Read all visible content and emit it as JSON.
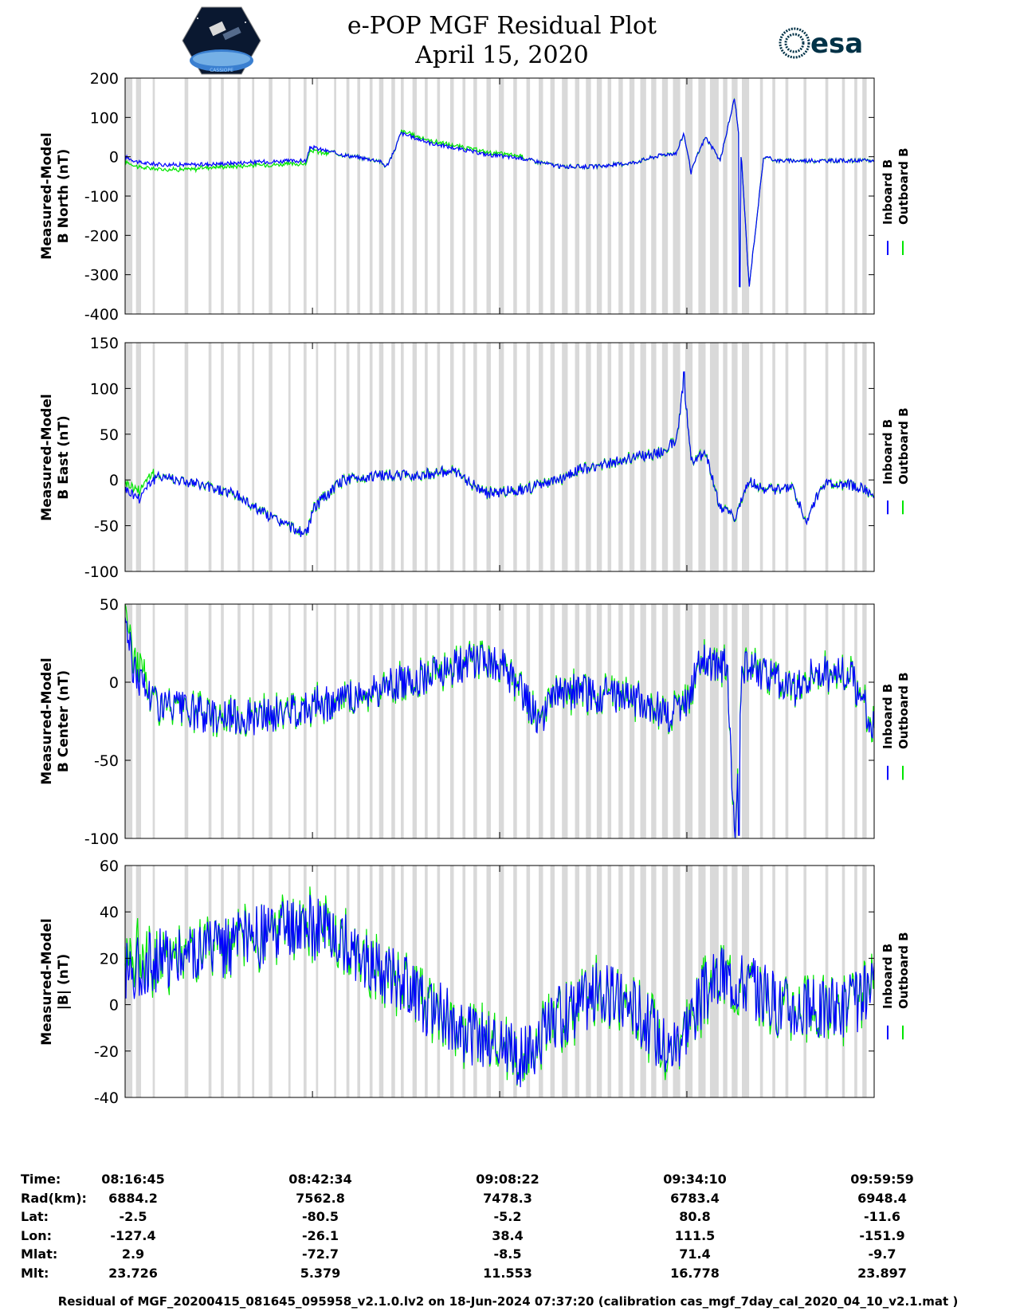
{
  "title_line1": "e-POP MGF Residual Plot",
  "title_line2": "April 15, 2020",
  "logo_cassiope_text": "CASSIOPE",
  "logo_esa_text": "esa",
  "footer": "Residual of MGF_20200415_081645_095958_v2.1.0.lv2 on 18-Jun-2024 07:37:20 (calibration cas_mgf_7day_cal_2020_04_10_v2.1.mat )",
  "colors": {
    "inboard": "#0000ff",
    "outboard": "#00e600",
    "gap": "#d9d9d9",
    "axis": "#000000"
  },
  "legend": {
    "inboard": "Inboard B",
    "outboard": "Outboard B"
  },
  "info_table": {
    "labels": [
      "Time:",
      "Rad(km):",
      "Lat:",
      "Lon:",
      "Mlat:",
      "Mlt:"
    ],
    "columns": [
      [
        "08:16:45",
        "6884.2",
        "-2.5",
        "-127.4",
        "2.9",
        "23.726"
      ],
      [
        "08:42:34",
        "7562.8",
        "-80.5",
        "-26.1",
        "-72.7",
        "5.379"
      ],
      [
        "09:08:22",
        "7478.3",
        "-5.2",
        "38.4",
        "-8.5",
        "11.553"
      ],
      [
        "09:34:10",
        "6783.4",
        "80.8",
        "111.5",
        "71.4",
        "16.778"
      ],
      [
        "09:59:59",
        "6948.4",
        "-11.6",
        "-151.9",
        "-9.7",
        "23.897"
      ]
    ]
  },
  "chart_data": [
    {
      "type": "line",
      "ylabel_line1": "Measured-Model",
      "ylabel_line2": "B North (nT)",
      "ylim": [
        -400,
        200
      ],
      "yticks": [
        200,
        100,
        0,
        -100,
        -200,
        -300,
        -400
      ],
      "xlim_min": [
        0,
        103.23
      ],
      "xticks_min": [
        0,
        25.82,
        51.62,
        77.42,
        103.23
      ],
      "noise": 5,
      "envelope_min": [
        0,
        2,
        5,
        10,
        20,
        25,
        25.5,
        30,
        35,
        36,
        37,
        38,
        42,
        50,
        55,
        60,
        65,
        70,
        74,
        76,
        77,
        78,
        79,
        80,
        82,
        84,
        85,
        86,
        88,
        90,
        95,
        100,
        103.23
      ],
      "envelope_val": [
        0,
        -15,
        -20,
        -20,
        -12,
        -10,
        25,
        5,
        -10,
        -25,
        10,
        60,
        35,
        5,
        -5,
        -25,
        -25,
        -15,
        5,
        10,
        60,
        -40,
        10,
        50,
        -10,
        150,
        -20,
        -330,
        0,
        -10,
        -10,
        -10,
        -10
      ],
      "outboard_offsets": [
        [
          0,
          12,
          -12
        ],
        [
          10,
          28,
          -8
        ],
        [
          38,
          55,
          6
        ]
      ],
      "spike_min": 84.7,
      "spike_val": -330
    },
    {
      "type": "line",
      "ylabel_line1": "Measured-Model",
      "ylabel_line2": "B East (nT)",
      "ylim": [
        -100,
        150
      ],
      "yticks": [
        150,
        100,
        50,
        0,
        -50,
        -100
      ],
      "xlim_min": [
        0,
        103.23
      ],
      "xticks_min": [
        0,
        25.82,
        51.62,
        77.42,
        103.23
      ],
      "noise": 6,
      "envelope_min": [
        0,
        2,
        3,
        5,
        10,
        15,
        20,
        25,
        26,
        28,
        30,
        35,
        40,
        45,
        50,
        55,
        60,
        62,
        65,
        70,
        74,
        76,
        77,
        78,
        80,
        82,
        84,
        86,
        88,
        90,
        92,
        94,
        96,
        100,
        103.23
      ],
      "envelope_val": [
        -10,
        -20,
        -5,
        5,
        -5,
        -15,
        -40,
        -60,
        -30,
        -15,
        0,
        5,
        5,
        10,
        -15,
        -10,
        0,
        10,
        15,
        25,
        30,
        45,
        110,
        20,
        30,
        -30,
        -40,
        0,
        -10,
        -10,
        -10,
        -45,
        -5,
        -5,
        -15
      ],
      "outboard_offsets": [
        [
          0,
          4,
          8
        ]
      ],
      "spike_min": 77.0,
      "spike_val": 118
    },
    {
      "type": "line",
      "ylabel_line1": "Measured-Model",
      "ylabel_line2": "B Center (nT)",
      "ylim": [
        -100,
        50
      ],
      "yticks": [
        50,
        0,
        -50,
        -100
      ],
      "xlim_min": [
        0,
        103.23
      ],
      "xticks_min": [
        0,
        25.82,
        51.62,
        77.42,
        103.23
      ],
      "noise": 12,
      "envelope_min": [
        0,
        1,
        3,
        5,
        10,
        15,
        20,
        25,
        30,
        35,
        40,
        45,
        50,
        52,
        55,
        57,
        60,
        65,
        70,
        75,
        77,
        78,
        79,
        83,
        84,
        85,
        88,
        92,
        95,
        100,
        103.23
      ],
      "envelope_val": [
        45,
        10,
        -5,
        -15,
        -20,
        -22,
        -22,
        -15,
        -12,
        -5,
        2,
        10,
        15,
        10,
        -10,
        -25,
        -5,
        -8,
        -10,
        -20,
        -15,
        -5,
        15,
        10,
        -100,
        10,
        5,
        -5,
        5,
        5,
        -30
      ],
      "outboard_offsets": [
        [
          0,
          3,
          8
        ]
      ],
      "spike_min": 84.6,
      "spike_val": -98
    },
    {
      "type": "line",
      "ylabel_line1": "Measured-Model",
      "ylabel_line2": "|B| (nT)",
      "ylim": [
        -40,
        60
      ],
      "yticks": [
        60,
        40,
        20,
        0,
        -20,
        -40
      ],
      "xlim_min": [
        0,
        103.23
      ],
      "xticks_min": [
        0,
        25.82,
        51.62,
        77.42,
        103.23
      ],
      "noise": 14,
      "envelope_min": [
        0,
        3,
        5,
        10,
        15,
        20,
        25,
        30,
        35,
        40,
        45,
        50,
        55,
        60,
        65,
        70,
        72,
        75,
        78,
        80,
        82,
        85,
        88,
        90,
        95,
        100,
        103.23
      ],
      "envelope_val": [
        15,
        18,
        20,
        24,
        26,
        30,
        34,
        28,
        16,
        4,
        -8,
        -18,
        -22,
        -5,
        5,
        0,
        -8,
        -20,
        -5,
        5,
        12,
        10,
        5,
        0,
        -3,
        0,
        5
      ],
      "outboard_offsets": [
        [
          0,
          3,
          6
        ]
      ],
      "spike_min": null,
      "spike_val": null
    }
  ],
  "gap_bands_min": [
    [
      0.0,
      1.0
    ],
    [
      1.5,
      2.2
    ],
    [
      3.8,
      4.1
    ],
    [
      8.2,
      8.7
    ],
    [
      11.5,
      11.9
    ],
    [
      13.2,
      13.6
    ],
    [
      15.5,
      15.9
    ],
    [
      17.5,
      17.8
    ],
    [
      19.8,
      20.3
    ],
    [
      22.5,
      22.8
    ],
    [
      24.6,
      25.0
    ],
    [
      26.3,
      26.6
    ],
    [
      28.8,
      29.1
    ],
    [
      30.5,
      30.9
    ],
    [
      32.0,
      32.4
    ],
    [
      33.7,
      34.1
    ],
    [
      35.0,
      35.6
    ],
    [
      36.7,
      37.2
    ],
    [
      38.0,
      38.4
    ],
    [
      39.6,
      40.2
    ],
    [
      41.3,
      41.7
    ],
    [
      43.0,
      43.4
    ],
    [
      44.8,
      45.3
    ],
    [
      46.5,
      46.9
    ],
    [
      48.0,
      48.5
    ],
    [
      49.8,
      50.4
    ],
    [
      51.5,
      52.2
    ],
    [
      53.5,
      54.0
    ],
    [
      55.3,
      55.8
    ],
    [
      57.0,
      57.6
    ],
    [
      58.6,
      59.2
    ],
    [
      60.2,
      61.0
    ],
    [
      62.0,
      62.6
    ],
    [
      63.5,
      64.2
    ],
    [
      65.0,
      65.7
    ],
    [
      66.5,
      67.0
    ],
    [
      68.0,
      68.6
    ],
    [
      69.5,
      70.2
    ],
    [
      71.0,
      71.8
    ],
    [
      72.5,
      73.2
    ],
    [
      74.0,
      74.8
    ],
    [
      75.5,
      76.5
    ],
    [
      77.2,
      78.2
    ],
    [
      79.0,
      80.0
    ],
    [
      80.6,
      81.8
    ],
    [
      82.4,
      83.0
    ],
    [
      83.6,
      84.4
    ],
    [
      85.0,
      86.0
    ],
    [
      87.5,
      87.9
    ],
    [
      89.2,
      89.6
    ],
    [
      91.0,
      91.4
    ],
    [
      93.5,
      93.9
    ],
    [
      96.5,
      96.9
    ],
    [
      98.8,
      99.2
    ],
    [
      100.5,
      100.9
    ],
    [
      101.6,
      102.2
    ]
  ]
}
